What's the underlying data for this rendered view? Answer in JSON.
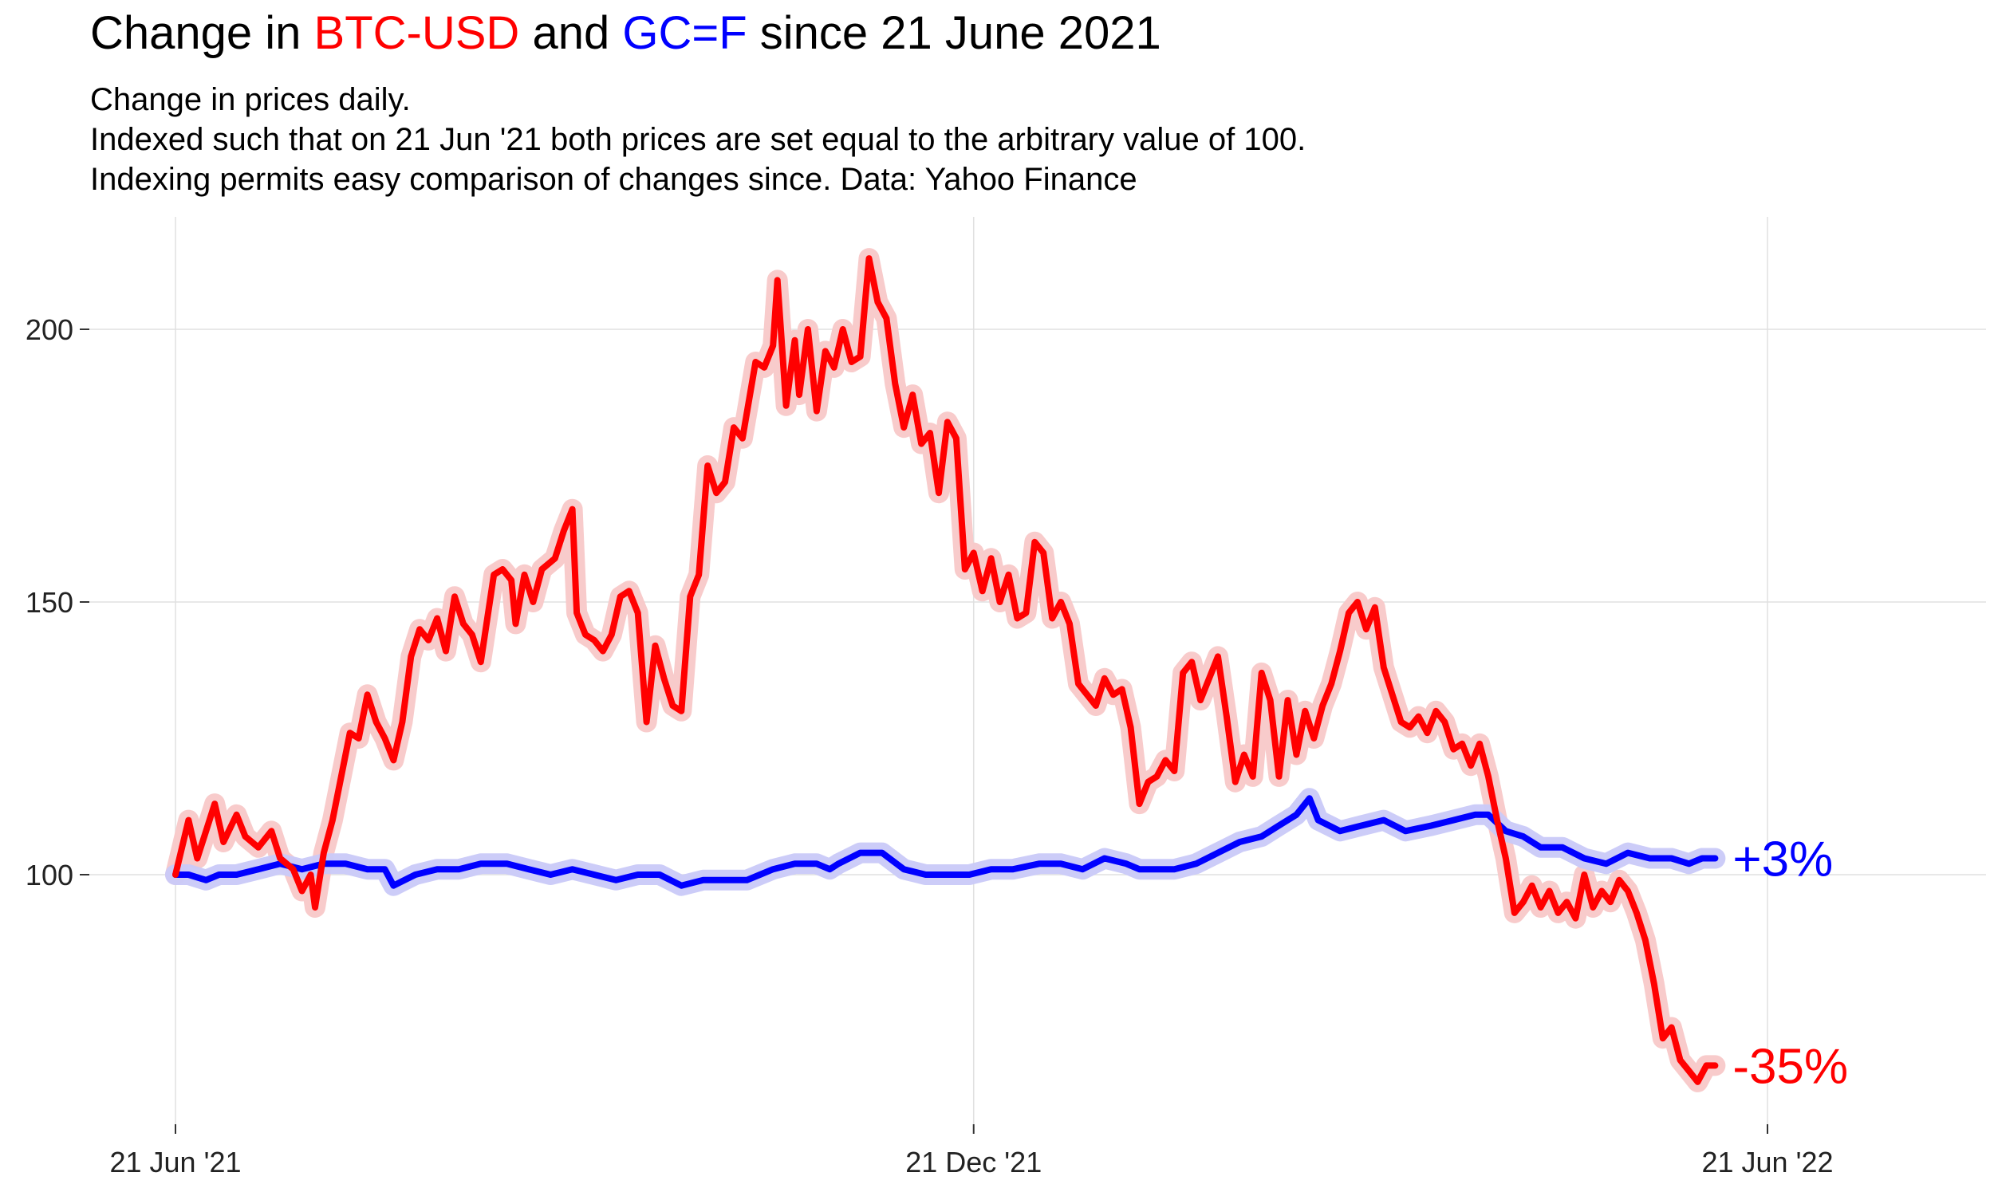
{
  "title": {
    "prefix": "Change in ",
    "series1": "BTC-USD",
    "mid": " and ",
    "series2": "GC=F",
    "suffix": " since 21 June 2021"
  },
  "subtitle": [
    "Change in prices daily.",
    "Indexed such that on 21 Jun '21 both prices are set equal to the arbitrary value of 100.",
    "Indexing permits easy comparison of changes since. Data: Yahoo Finance"
  ],
  "colors": {
    "btc": "#ff0000",
    "gold": "#0000ff",
    "btc_halo": "#f8c8c8",
    "gold_halo": "#c9c9f8",
    "grid": "#e0e0e0"
  },
  "chart_data": {
    "type": "line",
    "title": "Change in BTC-USD and GC=F since 21 June 2021",
    "subtitle": "Change in prices daily. Indexed such that on 21 Jun '21 both prices are set equal to the arbitrary value of 100. Indexing permits easy comparison of changes since. Data: Yahoo Finance",
    "xlabel": "",
    "ylabel": "",
    "x_range": [
      "2021-06-21",
      "2022-06-21"
    ],
    "y_range": [
      55,
      220
    ],
    "x_ticks": [
      {
        "date": "2021-06-21",
        "label": "21 Jun '21"
      },
      {
        "date": "2021-12-21",
        "label": "21 Dec '21"
      },
      {
        "date": "2022-06-21",
        "label": "21 Jun '22"
      }
    ],
    "y_ticks": [
      100,
      150,
      200
    ],
    "grid": true,
    "legend": "none",
    "series": [
      {
        "name": "BTC-USD",
        "end_label": "-35%",
        "points": [
          [
            "2021-06-21",
            100
          ],
          [
            "2021-06-24",
            110
          ],
          [
            "2021-06-26",
            103
          ],
          [
            "2021-06-28",
            108
          ],
          [
            "2021-06-30",
            113
          ],
          [
            "2021-07-02",
            106
          ],
          [
            "2021-07-05",
            111
          ],
          [
            "2021-07-07",
            107
          ],
          [
            "2021-07-10",
            105
          ],
          [
            "2021-07-13",
            108
          ],
          [
            "2021-07-15",
            103
          ],
          [
            "2021-07-18",
            101
          ],
          [
            "2021-07-20",
            97
          ],
          [
            "2021-07-22",
            100
          ],
          [
            "2021-07-23",
            94
          ],
          [
            "2021-07-25",
            104
          ],
          [
            "2021-07-27",
            110
          ],
          [
            "2021-07-29",
            118
          ],
          [
            "2021-07-31",
            126
          ],
          [
            "2021-08-02",
            125
          ],
          [
            "2021-08-04",
            133
          ],
          [
            "2021-08-06",
            128
          ],
          [
            "2021-08-08",
            125
          ],
          [
            "2021-08-10",
            121
          ],
          [
            "2021-08-12",
            128
          ],
          [
            "2021-08-14",
            140
          ],
          [
            "2021-08-16",
            145
          ],
          [
            "2021-08-18",
            143
          ],
          [
            "2021-08-20",
            147
          ],
          [
            "2021-08-22",
            141
          ],
          [
            "2021-08-24",
            151
          ],
          [
            "2021-08-26",
            146
          ],
          [
            "2021-08-28",
            144
          ],
          [
            "2021-08-30",
            139
          ],
          [
            "2021-09-02",
            155
          ],
          [
            "2021-09-04",
            156
          ],
          [
            "2021-09-06",
            154
          ],
          [
            "2021-09-07",
            146
          ],
          [
            "2021-09-09",
            155
          ],
          [
            "2021-09-11",
            150
          ],
          [
            "2021-09-13",
            156
          ],
          [
            "2021-09-16",
            158
          ],
          [
            "2021-09-18",
            163
          ],
          [
            "2021-09-20",
            167
          ],
          [
            "2021-09-21",
            148
          ],
          [
            "2021-09-23",
            144
          ],
          [
            "2021-09-25",
            143
          ],
          [
            "2021-09-27",
            141
          ],
          [
            "2021-09-29",
            144
          ],
          [
            "2021-10-01",
            151
          ],
          [
            "2021-10-03",
            152
          ],
          [
            "2021-10-05",
            148
          ],
          [
            "2021-10-07",
            128
          ],
          [
            "2021-10-09",
            142
          ],
          [
            "2021-10-11",
            136
          ],
          [
            "2021-10-13",
            131
          ],
          [
            "2021-10-15",
            130
          ],
          [
            "2021-10-17",
            151
          ],
          [
            "2021-10-19",
            155
          ],
          [
            "2021-10-21",
            175
          ],
          [
            "2021-10-23",
            170
          ],
          [
            "2021-10-25",
            172
          ],
          [
            "2021-10-27",
            182
          ],
          [
            "2021-10-29",
            180
          ],
          [
            "2021-11-01",
            194
          ],
          [
            "2021-11-03",
            193
          ],
          [
            "2021-11-05",
            197
          ],
          [
            "2021-11-06",
            209
          ],
          [
            "2021-11-08",
            186
          ],
          [
            "2021-11-10",
            198
          ],
          [
            "2021-11-11",
            188
          ],
          [
            "2021-11-13",
            200
          ],
          [
            "2021-11-15",
            185
          ],
          [
            "2021-11-17",
            196
          ],
          [
            "2021-11-19",
            193
          ],
          [
            "2021-11-21",
            200
          ],
          [
            "2021-11-23",
            194
          ],
          [
            "2021-11-25",
            195
          ],
          [
            "2021-11-27",
            213
          ],
          [
            "2021-11-29",
            205
          ],
          [
            "2021-12-01",
            202
          ],
          [
            "2021-12-03",
            190
          ],
          [
            "2021-12-05",
            182
          ],
          [
            "2021-12-07",
            188
          ],
          [
            "2021-12-09",
            179
          ],
          [
            "2021-12-11",
            181
          ],
          [
            "2021-12-13",
            170
          ],
          [
            "2021-12-15",
            183
          ],
          [
            "2021-12-17",
            180
          ],
          [
            "2021-12-19",
            156
          ],
          [
            "2021-12-21",
            159
          ],
          [
            "2021-12-23",
            152
          ],
          [
            "2021-12-25",
            158
          ],
          [
            "2021-12-27",
            150
          ],
          [
            "2021-12-29",
            155
          ],
          [
            "2021-12-31",
            147
          ],
          [
            "2022-01-02",
            148
          ],
          [
            "2022-01-04",
            161
          ],
          [
            "2022-01-06",
            159
          ],
          [
            "2022-01-08",
            147
          ],
          [
            "2022-01-10",
            150
          ],
          [
            "2022-01-12",
            146
          ],
          [
            "2022-01-14",
            135
          ],
          [
            "2022-01-16",
            133
          ],
          [
            "2022-01-18",
            131
          ],
          [
            "2022-01-20",
            136
          ],
          [
            "2022-01-22",
            133
          ],
          [
            "2022-01-24",
            134
          ],
          [
            "2022-01-26",
            127
          ],
          [
            "2022-01-28",
            113
          ],
          [
            "2022-01-30",
            117
          ],
          [
            "2022-02-01",
            118
          ],
          [
            "2022-02-03",
            121
          ],
          [
            "2022-02-05",
            119
          ],
          [
            "2022-02-07",
            137
          ],
          [
            "2022-02-09",
            139
          ],
          [
            "2022-02-11",
            132
          ],
          [
            "2022-02-13",
            136
          ],
          [
            "2022-02-15",
            140
          ],
          [
            "2022-02-17",
            129
          ],
          [
            "2022-02-19",
            117
          ],
          [
            "2022-02-21",
            122
          ],
          [
            "2022-02-23",
            118
          ],
          [
            "2022-02-25",
            137
          ],
          [
            "2022-02-27",
            132
          ],
          [
            "2022-03-01",
            118
          ],
          [
            "2022-03-03",
            132
          ],
          [
            "2022-03-05",
            122
          ],
          [
            "2022-03-07",
            130
          ],
          [
            "2022-03-09",
            125
          ],
          [
            "2022-03-11",
            131
          ],
          [
            "2022-03-13",
            135
          ],
          [
            "2022-03-15",
            141
          ],
          [
            "2022-03-17",
            148
          ],
          [
            "2022-03-19",
            150
          ],
          [
            "2022-03-21",
            145
          ],
          [
            "2022-03-23",
            149
          ],
          [
            "2022-03-25",
            138
          ],
          [
            "2022-03-27",
            133
          ],
          [
            "2022-03-29",
            128
          ],
          [
            "2022-03-31",
            127
          ],
          [
            "2022-04-02",
            129
          ],
          [
            "2022-04-04",
            126
          ],
          [
            "2022-04-06",
            130
          ],
          [
            "2022-04-08",
            128
          ],
          [
            "2022-04-10",
            123
          ],
          [
            "2022-04-12",
            124
          ],
          [
            "2022-04-14",
            120
          ],
          [
            "2022-04-16",
            124
          ],
          [
            "2022-04-18",
            118
          ],
          [
            "2022-04-20",
            110
          ],
          [
            "2022-04-22",
            103
          ],
          [
            "2022-04-24",
            93
          ],
          [
            "2022-04-26",
            95
          ],
          [
            "2022-04-28",
            98
          ],
          [
            "2022-04-30",
            94
          ],
          [
            "2022-05-02",
            97
          ],
          [
            "2022-05-04",
            93
          ],
          [
            "2022-05-06",
            95
          ],
          [
            "2022-05-08",
            92
          ],
          [
            "2022-05-10",
            100
          ],
          [
            "2022-05-12",
            94
          ],
          [
            "2022-05-14",
            97
          ],
          [
            "2022-05-16",
            95
          ],
          [
            "2022-05-18",
            99
          ],
          [
            "2022-05-20",
            97
          ],
          [
            "2022-05-22",
            93
          ],
          [
            "2022-05-24",
            88
          ],
          [
            "2022-05-26",
            80
          ],
          [
            "2022-05-28",
            70
          ],
          [
            "2022-05-30",
            72
          ],
          [
            "2022-06-01",
            66
          ],
          [
            "2022-06-03",
            64
          ],
          [
            "2022-06-05",
            62
          ],
          [
            "2022-06-07",
            65
          ],
          [
            "2022-06-09",
            65
          ]
        ]
      },
      {
        "name": "GC=F",
        "end_label": "+3%",
        "points": [
          [
            "2021-06-21",
            100
          ],
          [
            "2021-06-24",
            100
          ],
          [
            "2021-06-28",
            99
          ],
          [
            "2021-07-01",
            100
          ],
          [
            "2021-07-05",
            100
          ],
          [
            "2021-07-10",
            101
          ],
          [
            "2021-07-15",
            102
          ],
          [
            "2021-07-20",
            101
          ],
          [
            "2021-07-25",
            102
          ],
          [
            "2021-07-30",
            102
          ],
          [
            "2021-08-04",
            101
          ],
          [
            "2021-08-08",
            101
          ],
          [
            "2021-08-10",
            98
          ],
          [
            "2021-08-15",
            100
          ],
          [
            "2021-08-20",
            101
          ],
          [
            "2021-08-25",
            101
          ],
          [
            "2021-08-30",
            102
          ],
          [
            "2021-09-05",
            102
          ],
          [
            "2021-09-10",
            101
          ],
          [
            "2021-09-15",
            100
          ],
          [
            "2021-09-20",
            101
          ],
          [
            "2021-09-25",
            100
          ],
          [
            "2021-09-30",
            99
          ],
          [
            "2021-10-05",
            100
          ],
          [
            "2021-10-10",
            100
          ],
          [
            "2021-10-15",
            98
          ],
          [
            "2021-10-20",
            99
          ],
          [
            "2021-10-25",
            99
          ],
          [
            "2021-10-30",
            99
          ],
          [
            "2021-11-02",
            100
          ],
          [
            "2021-11-05",
            101
          ],
          [
            "2021-11-10",
            102
          ],
          [
            "2021-11-15",
            102
          ],
          [
            "2021-11-18",
            101
          ],
          [
            "2021-11-20",
            102
          ],
          [
            "2021-11-25",
            104
          ],
          [
            "2021-11-30",
            104
          ],
          [
            "2021-12-05",
            101
          ],
          [
            "2021-12-10",
            100
          ],
          [
            "2021-12-15",
            100
          ],
          [
            "2021-12-20",
            100
          ],
          [
            "2021-12-25",
            101
          ],
          [
            "2021-12-30",
            101
          ],
          [
            "2022-01-05",
            102
          ],
          [
            "2022-01-10",
            102
          ],
          [
            "2022-01-15",
            101
          ],
          [
            "2022-01-20",
            103
          ],
          [
            "2022-01-25",
            102
          ],
          [
            "2022-01-28",
            101
          ],
          [
            "2022-02-01",
            101
          ],
          [
            "2022-02-05",
            101
          ],
          [
            "2022-02-10",
            102
          ],
          [
            "2022-02-15",
            104
          ],
          [
            "2022-02-20",
            106
          ],
          [
            "2022-02-25",
            107
          ],
          [
            "2022-03-01",
            109
          ],
          [
            "2022-03-05",
            111
          ],
          [
            "2022-03-08",
            114
          ],
          [
            "2022-03-10",
            110
          ],
          [
            "2022-03-15",
            108
          ],
          [
            "2022-03-20",
            109
          ],
          [
            "2022-03-25",
            110
          ],
          [
            "2022-03-30",
            108
          ],
          [
            "2022-04-05",
            109
          ],
          [
            "2022-04-10",
            110
          ],
          [
            "2022-04-15",
            111
          ],
          [
            "2022-04-18",
            111
          ],
          [
            "2022-04-22",
            108
          ],
          [
            "2022-04-26",
            107
          ],
          [
            "2022-04-30",
            105
          ],
          [
            "2022-05-05",
            105
          ],
          [
            "2022-05-10",
            103
          ],
          [
            "2022-05-15",
            102
          ],
          [
            "2022-05-20",
            104
          ],
          [
            "2022-05-25",
            103
          ],
          [
            "2022-05-30",
            103
          ],
          [
            "2022-06-03",
            102
          ],
          [
            "2022-06-06",
            103
          ],
          [
            "2022-06-09",
            103
          ]
        ]
      }
    ]
  }
}
